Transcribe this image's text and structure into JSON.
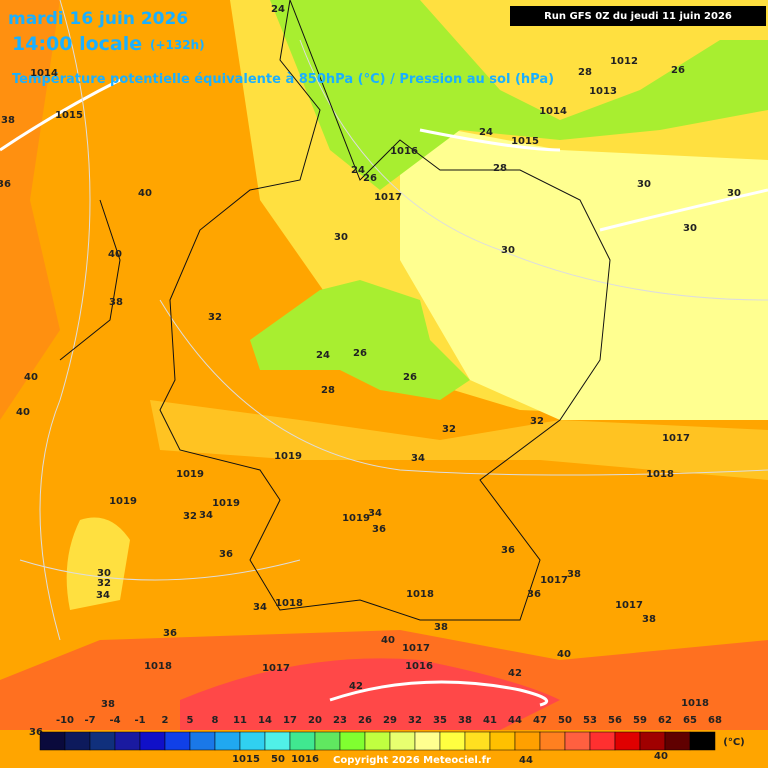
{
  "header": {
    "date": "mardi 16 juin 2026",
    "time": "14:00 locale",
    "lead": "(+132h)",
    "subtitle": "Température potentielle équivalente à 850hPa (°C) / Pression au sol (hPa)",
    "run": "Run GFS 0Z du jeudi 11 juin 2026"
  },
  "map_labels": [
    "1014",
    "1015",
    "38",
    "36",
    "40",
    "40",
    "38",
    "32",
    "40",
    "40",
    "24",
    "28",
    "1012",
    "26",
    "1013",
    "1014",
    "24",
    "1015",
    "1016",
    "28",
    "24",
    "26",
    "1017",
    "30",
    "30",
    "30",
    "30",
    "30",
    "24",
    "26",
    "26",
    "28",
    "32",
    "32",
    "1017",
    "34",
    "1019",
    "1019",
    "1018",
    "1019",
    "1019",
    "32",
    "34",
    "34",
    "1019",
    "36",
    "36",
    "36",
    "30",
    "32",
    "34",
    "1017",
    "38",
    "36",
    "1018",
    "1018",
    "34",
    "1017",
    "38",
    "36",
    "38",
    "40",
    "1017",
    "40",
    "1018",
    "1017",
    "1016",
    "42",
    "42",
    "38",
    "1018",
    "40",
    "36",
    "1015",
    "50",
    "1016",
    "44"
  ],
  "colorbar": {
    "ticks": [
      -10,
      -7,
      -4,
      -1,
      2,
      5,
      8,
      11,
      14,
      17,
      20,
      23,
      26,
      29,
      32,
      35,
      38,
      41,
      44,
      47,
      50,
      53,
      56,
      59,
      62,
      65,
      68
    ],
    "colors": [
      "#0a0a3c",
      "#0d1a5c",
      "#10307c",
      "#1a1aa0",
      "#1010c8",
      "#1040e8",
      "#1a78e8",
      "#20a8f0",
      "#30d0f0",
      "#50f0e8",
      "#40e890",
      "#60e860",
      "#80ff30",
      "#c0ff40",
      "#e8ff70",
      "#ffff90",
      "#ffff40",
      "#ffe020",
      "#ffc000",
      "#ffa000",
      "#ff8020",
      "#ff6040",
      "#ff3030",
      "#e00000",
      "#a00000",
      "#600000",
      "#000000"
    ],
    "unit": "(°C)"
  },
  "copyright": "Copyright 2026 Meteociel.fr"
}
